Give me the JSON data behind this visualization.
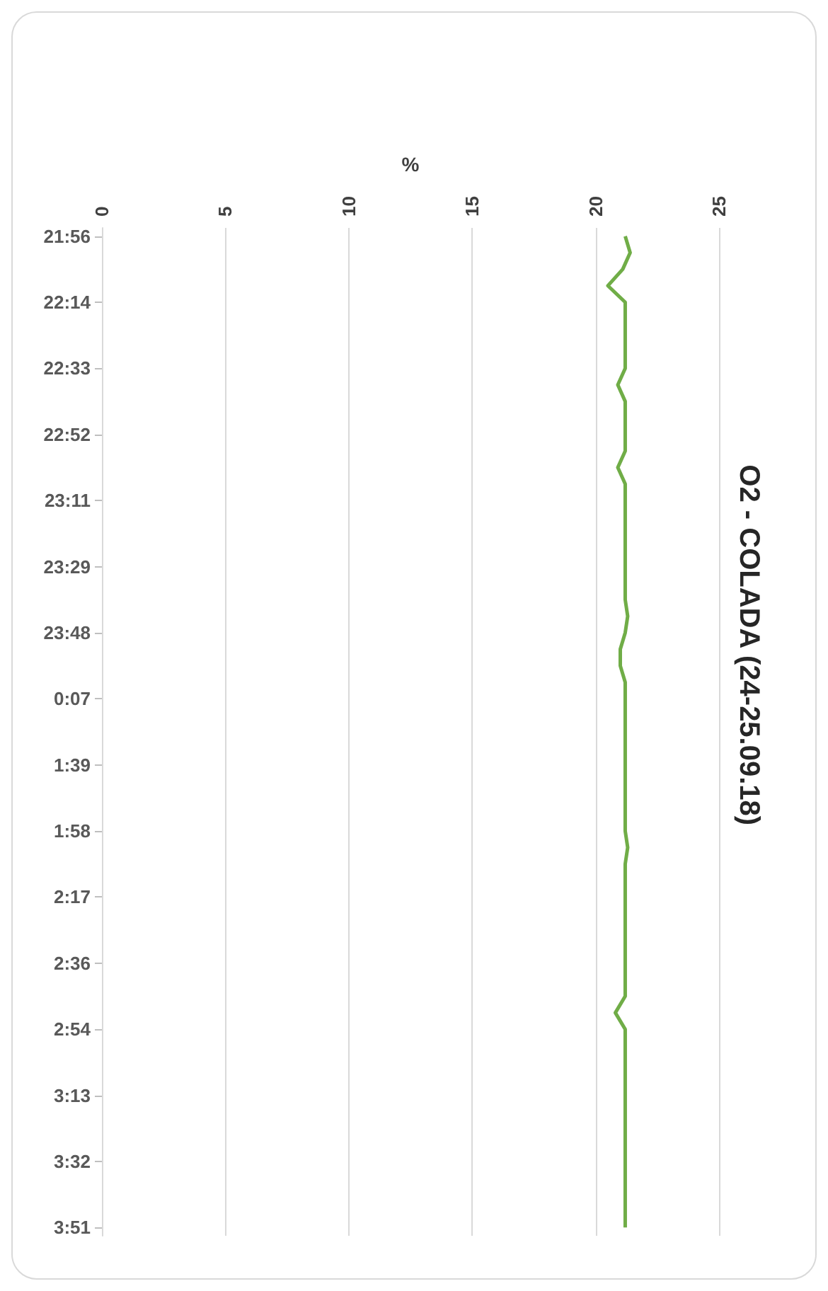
{
  "chart_data": {
    "type": "line",
    "title": "O2 - COLADA (24-25.09.18)",
    "xlabel": "%",
    "orientation": "horizontal",
    "categories": [
      "21:56",
      null,
      null,
      null,
      "22:14",
      null,
      null,
      null,
      "22:33",
      null,
      null,
      null,
      "22:52",
      null,
      null,
      null,
      "23:11",
      null,
      null,
      null,
      "23:29",
      null,
      null,
      null,
      "23:48",
      null,
      null,
      null,
      "0:07",
      null,
      null,
      null,
      "1:39",
      null,
      null,
      null,
      "1:58",
      null,
      null,
      null,
      "2:17",
      null,
      null,
      null,
      "2:36",
      null,
      null,
      null,
      "2:54",
      null,
      null,
      null,
      "3:13",
      null,
      null,
      null,
      "3:32",
      null,
      null,
      null,
      "3:51"
    ],
    "series": [
      {
        "color": "#70ad47",
        "values": [
          21.2,
          21.4,
          21.1,
          20.5,
          21.2,
          21.2,
          21.2,
          21.2,
          21.2,
          20.9,
          21.2,
          21.2,
          21.2,
          21.2,
          20.9,
          21.2,
          21.2,
          21.2,
          21.2,
          21.2,
          21.2,
          21.2,
          21.2,
          21.3,
          21.2,
          21.0,
          21.0,
          21.2,
          21.2,
          21.2,
          21.2,
          21.2,
          21.2,
          21.2,
          21.2,
          21.2,
          21.2,
          21.3,
          21.2,
          21.2,
          21.2,
          21.2,
          21.2,
          21.2,
          21.2,
          21.2,
          21.2,
          20.8,
          21.2,
          21.2,
          21.2,
          21.2,
          21.2,
          21.2,
          21.2,
          21.2,
          21.2,
          21.2,
          21.2,
          21.2,
          21.2
        ]
      }
    ],
    "xlim": [
      0,
      25
    ],
    "xticks": [
      0,
      5,
      10,
      15,
      20,
      25
    ],
    "grid": "x",
    "marker": "none",
    "line_style": "solid"
  }
}
